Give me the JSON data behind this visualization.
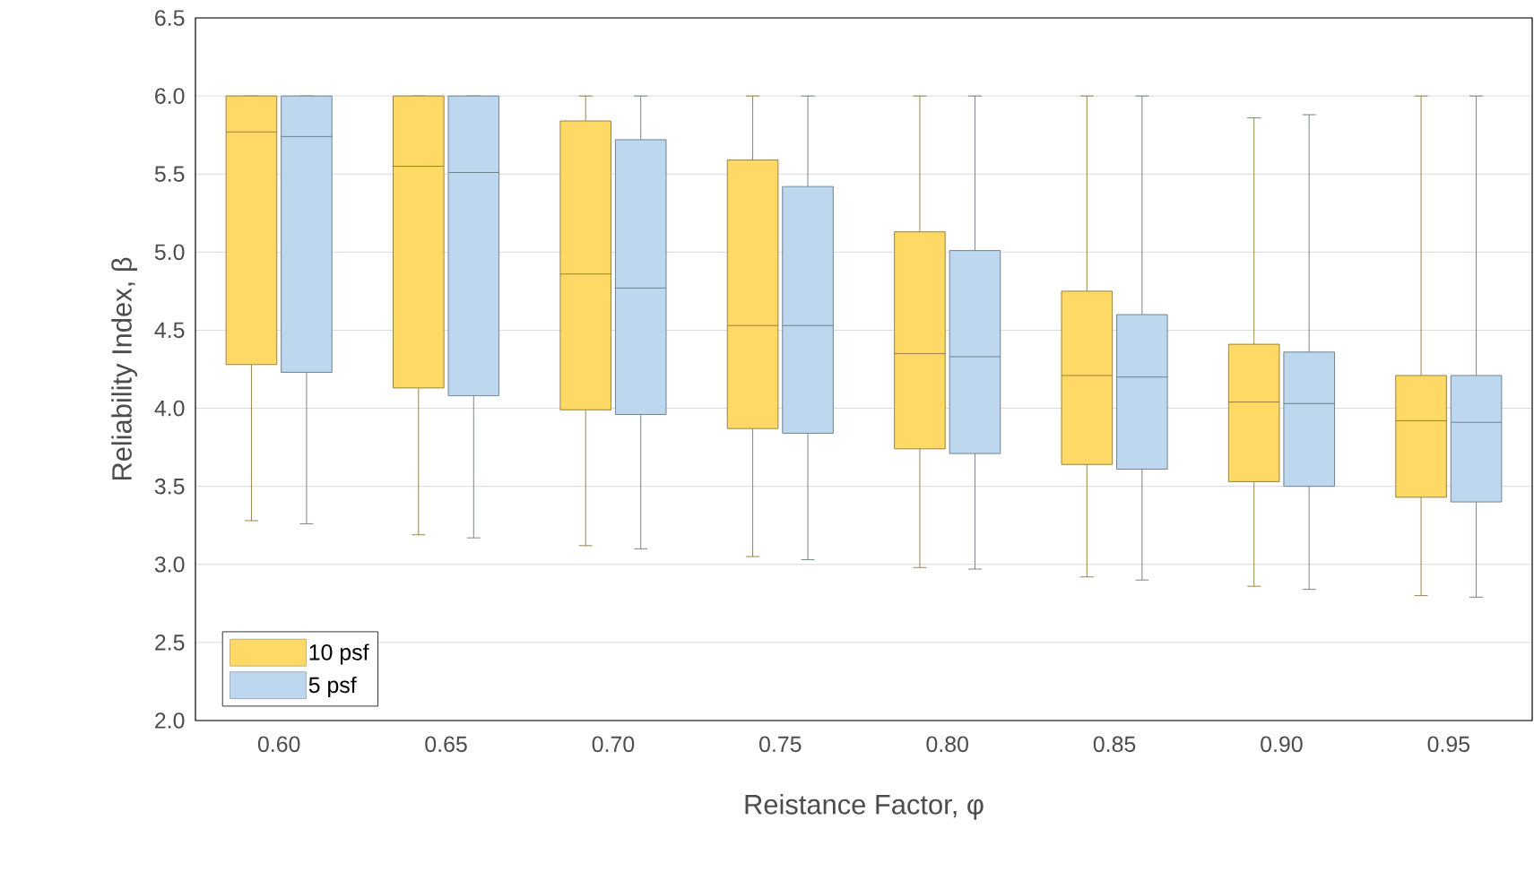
{
  "chart_data": {
    "type": "box",
    "xlabel": "Reistance Factor, φ",
    "ylabel": "Reliability Index, β",
    "categories": [
      "0.60",
      "0.65",
      "0.70",
      "0.75",
      "0.80",
      "0.85",
      "0.90",
      "0.95"
    ],
    "ylim": [
      2.0,
      6.5
    ],
    "yticks": [
      {
        "value": 2,
        "label": "2.0"
      },
      {
        "value": 2.5,
        "label": "2.5"
      },
      {
        "value": 3,
        "label": "3.0"
      },
      {
        "value": 3.5,
        "label": "3.5"
      },
      {
        "value": 4,
        "label": "4.0"
      },
      {
        "value": 4.5,
        "label": "4.5"
      },
      {
        "value": 5,
        "label": "5.0"
      },
      {
        "value": 5.5,
        "label": "5.5"
      },
      {
        "value": 6,
        "label": "6.0"
      },
      {
        "value": 6.5,
        "label": "6.5"
      }
    ],
    "grid": "y",
    "legend": "bottom left",
    "series": [
      {
        "name": "10 psf",
        "color": "#ffd966",
        "boxes": [
          {
            "low": 3.28,
            "q1": 4.28,
            "median": 5.77,
            "q3": 6.0,
            "high": 6.0
          },
          {
            "low": 3.19,
            "q1": 4.13,
            "median": 5.55,
            "q3": 6.0,
            "high": 6.0
          },
          {
            "low": 3.12,
            "q1": 3.99,
            "median": 4.86,
            "q3": 5.84,
            "high": 6.0
          },
          {
            "low": 3.05,
            "q1": 3.87,
            "median": 4.53,
            "q3": 5.59,
            "high": 6.0
          },
          {
            "low": 2.98,
            "q1": 3.74,
            "median": 4.35,
            "q3": 5.13,
            "high": 6.0
          },
          {
            "low": 2.92,
            "q1": 3.64,
            "median": 4.21,
            "q3": 4.75,
            "high": 6.0
          },
          {
            "low": 2.86,
            "q1": 3.53,
            "median": 4.04,
            "q3": 4.41,
            "high": 5.86
          },
          {
            "low": 2.8,
            "q1": 3.43,
            "median": 3.92,
            "q3": 4.21,
            "high": 6.0
          }
        ]
      },
      {
        "name": "5 psf",
        "color": "#bdd7ee",
        "boxes": [
          {
            "low": 3.26,
            "q1": 4.23,
            "median": 5.74,
            "q3": 6.0,
            "high": 6.0
          },
          {
            "low": 3.17,
            "q1": 4.08,
            "median": 5.51,
            "q3": 6.0,
            "high": 6.0
          },
          {
            "low": 3.1,
            "q1": 3.96,
            "median": 4.77,
            "q3": 5.72,
            "high": 6.0
          },
          {
            "low": 3.03,
            "q1": 3.84,
            "median": 4.53,
            "q3": 5.42,
            "high": 6.0
          },
          {
            "low": 2.97,
            "q1": 3.71,
            "median": 4.33,
            "q3": 5.01,
            "high": 6.0
          },
          {
            "low": 2.9,
            "q1": 3.61,
            "median": 4.2,
            "q3": 4.6,
            "high": 6.0
          },
          {
            "low": 2.84,
            "q1": 3.5,
            "median": 4.03,
            "q3": 4.36,
            "high": 5.88
          },
          {
            "low": 2.79,
            "q1": 3.4,
            "median": 3.91,
            "q3": 4.21,
            "high": 6.0
          }
        ]
      }
    ]
  }
}
